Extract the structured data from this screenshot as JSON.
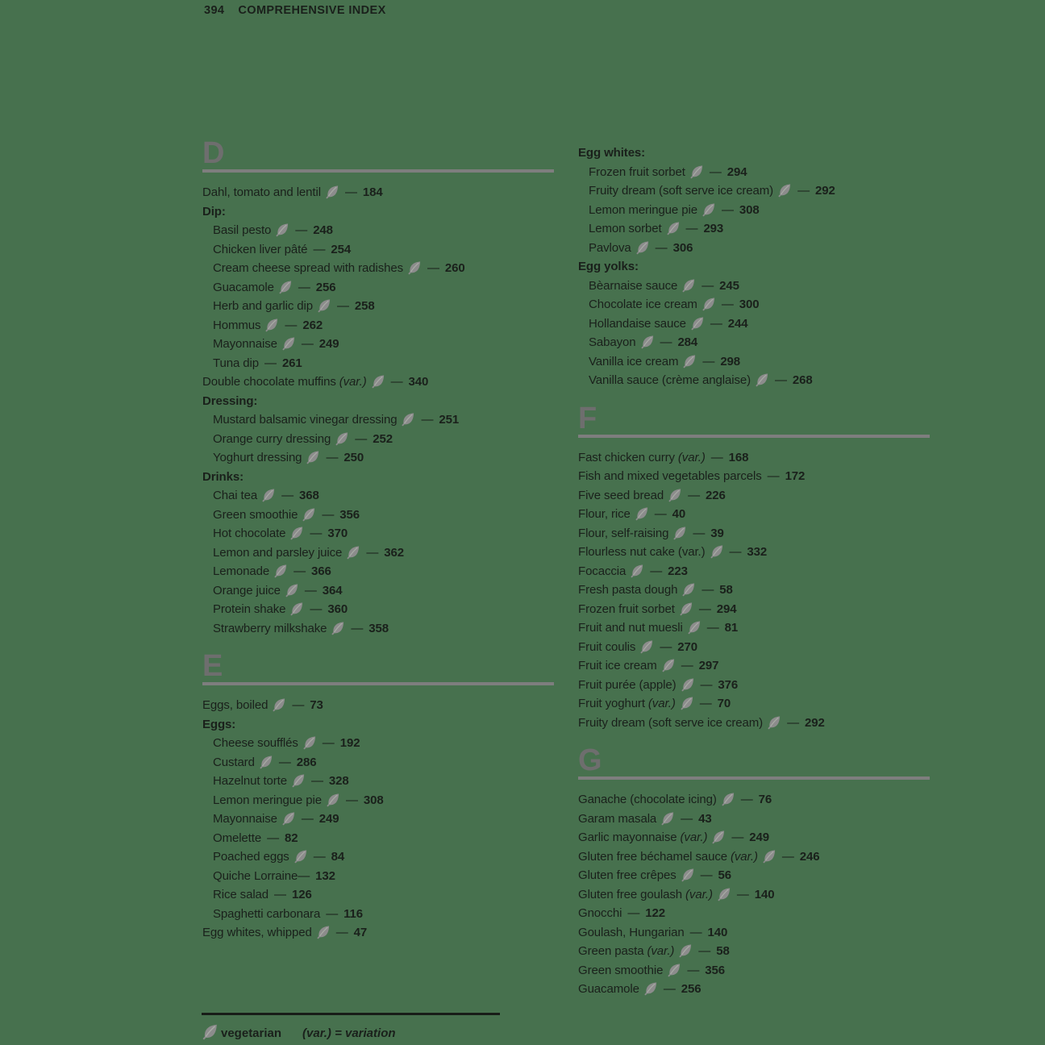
{
  "page": {
    "number": "394",
    "title": "COMPREHENSIVE INDEX"
  },
  "entry_dash": "—",
  "colors": {
    "background": "#47714e",
    "text": "#1a201b",
    "section_letter": "#6e6e6e",
    "section_rule": "#7e7e7e",
    "leaf_icon": "#8c8c8c",
    "leaf_vein": "#a9aca6",
    "footer_rule": "#181d18"
  },
  "legend": {
    "vegetarian_label": "vegetarian",
    "variation_label": "(var.) = variation"
  },
  "columns": [
    {
      "blocks": [
        {
          "type": "section",
          "letter": "D"
        },
        {
          "type": "entry",
          "text": "Dahl, tomato and lentil",
          "leaf": true,
          "page": "184"
        },
        {
          "type": "subheader",
          "text": "Dip:"
        },
        {
          "type": "entry",
          "indent": true,
          "text": "Basil pesto",
          "leaf": true,
          "page": "248"
        },
        {
          "type": "entry",
          "indent": true,
          "text": "Chicken liver pâté",
          "page": "254"
        },
        {
          "type": "entry",
          "indent": true,
          "text": "Cream cheese spread with radishes",
          "leaf": true,
          "page": "260"
        },
        {
          "type": "entry",
          "indent": true,
          "text": "Guacamole",
          "leaf": true,
          "page": "256"
        },
        {
          "type": "entry",
          "indent": true,
          "text": "Herb and garlic dip",
          "leaf": true,
          "page": "258"
        },
        {
          "type": "entry",
          "indent": true,
          "text": "Hommus",
          "leaf": true,
          "page": "262"
        },
        {
          "type": "entry",
          "indent": true,
          "text": "Mayonnaise",
          "leaf": true,
          "page": "249"
        },
        {
          "type": "entry",
          "indent": true,
          "text": "Tuna dip",
          "page": "261"
        },
        {
          "type": "entry",
          "text": "Double chocolate muffins",
          "var": "(var.)",
          "var_italic": true,
          "leaf": true,
          "page": "340"
        },
        {
          "type": "subheader",
          "text": "Dressing:"
        },
        {
          "type": "entry",
          "indent": true,
          "text": "Mustard balsamic vinegar dressing",
          "leaf": true,
          "page": "251"
        },
        {
          "type": "entry",
          "indent": true,
          "text": "Orange curry dressing",
          "leaf": true,
          "page": "252"
        },
        {
          "type": "entry",
          "indent": true,
          "text": "Yoghurt dressing",
          "leaf": true,
          "page": "250"
        },
        {
          "type": "subheader",
          "text": "Drinks:"
        },
        {
          "type": "entry",
          "indent": true,
          "text": "Chai tea",
          "leaf": true,
          "page": "368"
        },
        {
          "type": "entry",
          "indent": true,
          "text": "Green smoothie",
          "leaf": true,
          "page": "356"
        },
        {
          "type": "entry",
          "indent": true,
          "text": "Hot chocolate",
          "leaf": true,
          "page": "370"
        },
        {
          "type": "entry",
          "indent": true,
          "text": "Lemon and parsley juice",
          "leaf": true,
          "page": "362"
        },
        {
          "type": "entry",
          "indent": true,
          "text": "Lemonade",
          "leaf": true,
          "page": "366"
        },
        {
          "type": "entry",
          "indent": true,
          "text": "Orange juice",
          "leaf": true,
          "page": "364"
        },
        {
          "type": "entry",
          "indent": true,
          "text": "Protein shake",
          "leaf": true,
          "page": "360"
        },
        {
          "type": "entry",
          "indent": true,
          "text": "Strawberry milkshake",
          "leaf": true,
          "page": "358"
        },
        {
          "type": "section",
          "letter": "E"
        },
        {
          "type": "entry",
          "text": "Eggs, boiled",
          "leaf": true,
          "page": "73"
        },
        {
          "type": "subheader",
          "text": "Eggs:"
        },
        {
          "type": "entry",
          "indent": true,
          "text": "Cheese soufflés",
          "leaf": true,
          "page": "192"
        },
        {
          "type": "entry",
          "indent": true,
          "text": "Custard",
          "leaf": true,
          "page": "286"
        },
        {
          "type": "entry",
          "indent": true,
          "text": "Hazelnut torte",
          "leaf": true,
          "page": "328"
        },
        {
          "type": "entry",
          "indent": true,
          "text": "Lemon meringue pie",
          "leaf": true,
          "page": "308"
        },
        {
          "type": "entry",
          "indent": true,
          "text": "Mayonnaise",
          "leaf": true,
          "page": "249"
        },
        {
          "type": "entry",
          "indent": true,
          "text": "Omelette",
          "page": "82"
        },
        {
          "type": "entry",
          "indent": true,
          "text": "Poached eggs",
          "leaf": true,
          "page": "84"
        },
        {
          "type": "entry",
          "indent": true,
          "text": "Quiche Lorraine",
          "page": "132",
          "tight": true
        },
        {
          "type": "entry",
          "indent": true,
          "text": "Rice salad",
          "page": "126"
        },
        {
          "type": "entry",
          "indent": true,
          "text": "Spaghetti carbonara",
          "page": "116"
        },
        {
          "type": "entry",
          "text": "Egg whites, whipped",
          "leaf": true,
          "page": "47"
        }
      ]
    },
    {
      "blocks": [
        {
          "type": "subheader",
          "text": "Egg whites:"
        },
        {
          "type": "entry",
          "indent": true,
          "text": "Frozen fruit sorbet",
          "leaf": true,
          "page": "294"
        },
        {
          "type": "entry",
          "indent": true,
          "text": "Fruity dream (soft serve ice cream)",
          "leaf": true,
          "page": "292"
        },
        {
          "type": "entry",
          "indent": true,
          "text": "Lemon meringue pie",
          "leaf": true,
          "page": "308"
        },
        {
          "type": "entry",
          "indent": true,
          "text": "Lemon sorbet",
          "leaf": true,
          "page": "293"
        },
        {
          "type": "entry",
          "indent": true,
          "text": "Pavlova",
          "leaf": true,
          "page": "306"
        },
        {
          "type": "subheader",
          "text": "Egg yolks:"
        },
        {
          "type": "entry",
          "indent": true,
          "text": "Bèarnaise sauce",
          "leaf": true,
          "page": "245"
        },
        {
          "type": "entry",
          "indent": true,
          "text": "Chocolate ice cream",
          "leaf": true,
          "page": "300"
        },
        {
          "type": "entry",
          "indent": true,
          "text": "Hollandaise sauce",
          "leaf": true,
          "page": "244"
        },
        {
          "type": "entry",
          "indent": true,
          "text": "Sabayon",
          "leaf": true,
          "page": "284"
        },
        {
          "type": "entry",
          "indent": true,
          "text": "Vanilla ice cream",
          "leaf": true,
          "page": "298"
        },
        {
          "type": "entry",
          "indent": true,
          "text": "Vanilla sauce (crème anglaise)",
          "leaf": true,
          "page": "268"
        },
        {
          "type": "section",
          "letter": "F"
        },
        {
          "type": "entry",
          "text": "Fast chicken curry",
          "var": "(var.)",
          "var_italic": true,
          "page": "168"
        },
        {
          "type": "entry",
          "text": "Fish and mixed vegetables parcels",
          "page": "172"
        },
        {
          "type": "entry",
          "text": "Five seed bread",
          "leaf": true,
          "page": "226"
        },
        {
          "type": "entry",
          "text": "Flour, rice",
          "leaf": true,
          "page": "40"
        },
        {
          "type": "entry",
          "text": "Flour, self-raising",
          "leaf": true,
          "page": "39"
        },
        {
          "type": "entry",
          "text": "Flourless nut cake",
          "var": "(var.)",
          "var_italic": false,
          "leaf": true,
          "page": "332"
        },
        {
          "type": "entry",
          "text": "Focaccia",
          "leaf": true,
          "page": "223"
        },
        {
          "type": "entry",
          "text": "Fresh pasta dough",
          "leaf": true,
          "page": "58"
        },
        {
          "type": "entry",
          "text": "Frozen fruit sorbet",
          "leaf": true,
          "page": "294"
        },
        {
          "type": "entry",
          "text": "Fruit and nut muesli",
          "leaf": true,
          "page": "81"
        },
        {
          "type": "entry",
          "text": "Fruit coulis",
          "leaf": true,
          "page": "270"
        },
        {
          "type": "entry",
          "text": "Fruit ice cream",
          "leaf": true,
          "page": "297"
        },
        {
          "type": "entry",
          "text": "Fruit purée (apple)",
          "leaf": true,
          "page": "376"
        },
        {
          "type": "entry",
          "text": "Fruit yoghurt",
          "var": "(var.)",
          "var_italic": true,
          "leaf": true,
          "page": "70"
        },
        {
          "type": "entry",
          "text": "Fruity dream (soft serve ice cream)",
          "leaf": true,
          "page": "292"
        },
        {
          "type": "section",
          "letter": "G"
        },
        {
          "type": "entry",
          "text": "Ganache (chocolate icing)",
          "leaf": true,
          "page": "76"
        },
        {
          "type": "entry",
          "text": "Garam masala",
          "leaf": true,
          "page": "43"
        },
        {
          "type": "entry",
          "text": "Garlic mayonnaise",
          "var": "(var.)",
          "var_italic": true,
          "leaf": true,
          "page": "249"
        },
        {
          "type": "entry",
          "text": "Gluten free béchamel sauce",
          "var": "(var.)",
          "var_italic": true,
          "leaf": true,
          "page": "246"
        },
        {
          "type": "entry",
          "text": "Gluten free crêpes",
          "leaf": true,
          "page": "56"
        },
        {
          "type": "entry",
          "text": "Gluten free goulash",
          "var": "(var.)",
          "var_italic": true,
          "leaf": true,
          "page": "140"
        },
        {
          "type": "entry",
          "text": "Gnocchi",
          "page": "122"
        },
        {
          "type": "entry",
          "text": "Goulash, Hungarian",
          "page": "140"
        },
        {
          "type": "entry",
          "text": "Green pasta",
          "var": "(var.)",
          "var_italic": true,
          "leaf": true,
          "page": "58"
        },
        {
          "type": "entry",
          "text": "Green smoothie",
          "leaf": true,
          "page": "356"
        },
        {
          "type": "entry",
          "text": "Guacamole",
          "leaf": true,
          "page": "256"
        }
      ]
    }
  ]
}
